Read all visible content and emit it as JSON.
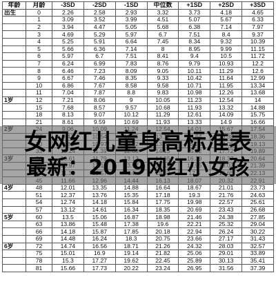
{
  "table": {
    "headers": [
      "年龄",
      "月龄",
      "-3SD",
      "-2SD",
      "-1SD",
      "中位数",
      "+1SD",
      "+2SD",
      "+3SD"
    ],
    "rows": [
      [
        "出生",
        "0",
        "2.26",
        "2.58",
        "2.93",
        "3.32",
        "3.73",
        "4.18",
        "4.65"
      ],
      [
        "",
        "1",
        "3.09",
        "3.52",
        "3.99",
        "4.51",
        "5.07",
        "5.67",
        "6.33"
      ],
      [
        "",
        "2",
        "3.94",
        "4.47",
        "5.05",
        "5.68",
        "6.38",
        "7.14",
        "7.97"
      ],
      [
        "",
        "3",
        "4.69",
        "5.29",
        "5.97",
        "6.7",
        "7.51",
        "8.4",
        "9.37"
      ],
      [
        "",
        "4",
        "5.25",
        "5.91",
        "6.64",
        "7.45",
        "8.34",
        "9.32",
        "10.39"
      ],
      [
        "",
        "5",
        "5.66",
        "6.36",
        "7.14",
        "8",
        "8.95",
        "9.99",
        "11.15"
      ],
      [
        "",
        "6",
        "5.97",
        "6.7",
        "7.51",
        "8.41",
        "9.4",
        "10.5",
        "11.72"
      ],
      [
        "",
        "7",
        "6.24",
        "6.99",
        "7.83",
        "8.76",
        "9.79",
        "10.93",
        "12.2"
      ],
      [
        "",
        "8",
        "6.46",
        "7.23",
        "8.09",
        "9.05",
        "10.11",
        "11.29",
        "12.6"
      ],
      [
        "",
        "9",
        "6.67",
        "7.46",
        "8.35",
        "9.33",
        "10.42",
        "11.64",
        "12.99"
      ],
      [
        "",
        "10",
        "6.86",
        "7.67",
        "8.58",
        "9.58",
        "10.71",
        "11.95",
        "13.34"
      ],
      [
        "",
        "11",
        "7.04",
        "7.87",
        "8.8",
        "9.83",
        "10.98",
        "12.26",
        "13.68"
      ],
      [
        "1岁",
        "12",
        "7.21",
        "8.06",
        "9",
        "10.05",
        "11.23",
        "12.54",
        "14"
      ],
      [
        "",
        "15",
        "7.68",
        "8.57",
        "9.57",
        "10.68",
        "11.93",
        "13.32",
        "14.88"
      ],
      [
        "",
        "18",
        "8.13",
        "9.07",
        "10.12",
        "11.29",
        "12.61",
        "14.09",
        "15.75"
      ],
      [
        "",
        "21",
        "8.61",
        "9.59",
        "10.69",
        "11.93",
        "13.33",
        "14.9",
        "16.66"
      ],
      [
        "2岁",
        "24",
        "9.06",
        "10.09",
        "11.24",
        "12.54",
        "14.01",
        "15.67",
        "17.54"
      ],
      [
        "",
        "27",
        "9.47",
        "10.54",
        "11.75",
        "13.11",
        "14.64",
        "16.38",
        "18.36"
      ],
      [
        "",
        "30",
        "9.86",
        "10.97",
        "12.22",
        "13.64",
        "15.24",
        "17.06",
        "19.13"
      ],
      [
        "",
        "33",
        "10.24",
        "11.39",
        "12.68",
        "14.15",
        "15.82",
        "17.72",
        "19.89"
      ],
      [
        "3岁",
        "36",
        "10.61",
        "11.79",
        "13.13",
        "14.65",
        "16.39",
        "18.37",
        "20.64"
      ],
      [
        "",
        "39",
        "10.97",
        "12.19",
        "13.57",
        "15.15",
        "16.95",
        "19.02",
        "21.39"
      ],
      [
        "",
        "42",
        "11.31",
        "12.57",
        "14",
        "15.63",
        "17.5",
        "19.65",
        "22.13"
      ],
      [
        "",
        "45",
        "11.66",
        "12.96",
        "14.44",
        "16.13",
        "18.07",
        "20.32",
        "22.91"
      ],
      [
        "4岁",
        "48",
        "12.01",
        "13.35",
        "14.88",
        "16.64",
        "18.67",
        "21.01",
        "23.73"
      ],
      [
        "",
        "51",
        "12.37",
        "13.76",
        "15.35",
        "17.18",
        "19.3",
        "21.76",
        "24.63"
      ],
      [
        "",
        "54",
        "12.74",
        "14.18",
        "15.84",
        "17.75",
        "19.98",
        "22.57",
        "25.61"
      ],
      [
        "",
        "57",
        "13.12",
        "14.61",
        "16.34",
        "18.35",
        "20.69",
        "23.43",
        "26.68"
      ],
      [
        "5岁",
        "60",
        "13.5",
        "15.06",
        "16.87",
        "18.98",
        "21.46",
        "24.38",
        "27.85"
      ],
      [
        "",
        "63",
        "13.86",
        "15.48",
        "17.38",
        "19.6",
        "22.21",
        "25.32",
        "29.04"
      ],
      [
        "",
        "66",
        "14.18",
        "15.87",
        "17.85",
        "20.18",
        "22.94",
        "26.24",
        "30.22"
      ],
      [
        "",
        "69",
        "14.48",
        "16.24",
        "18.3",
        "20.75",
        "23.66",
        "27.17",
        "31.43"
      ],
      [
        "6岁",
        "72",
        "14.74",
        "16.56",
        "18.71",
        "21.26",
        "24.32",
        "28.03",
        "32.57"
      ],
      [
        "",
        "75",
        "15.01",
        "16.9",
        "19.14",
        "21.82",
        "25.06",
        "29.01",
        "33.89"
      ],
      [
        "",
        "78",
        "15.3",
        "17.27",
        "19.62",
        "22.45",
        "25.89",
        "30.13",
        "35.41"
      ],
      [
        "",
        "81",
        "15.66",
        "17.73",
        "20.22",
        "23.24",
        "26.95",
        "31.56",
        "37.39"
      ]
    ]
  },
  "banner": {
    "line1": "女网红儿童身高标准表",
    "line2": "最新：2019网红小女孩"
  }
}
